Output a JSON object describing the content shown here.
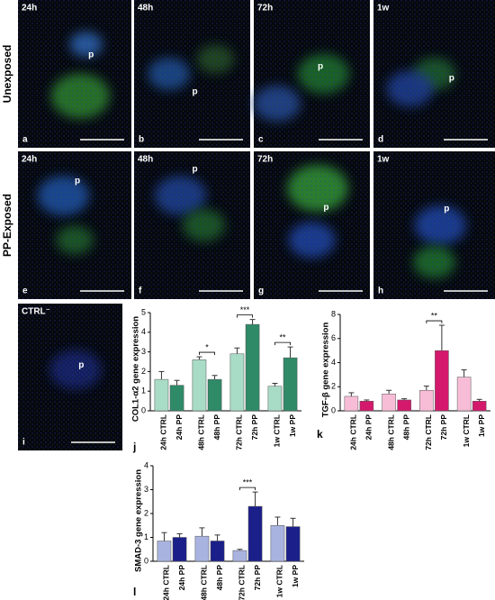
{
  "figure": {
    "rows": [
      "Unexposed",
      "PP-Exposed"
    ],
    "panels": [
      {
        "time": "24h",
        "marker": "p",
        "letter": "a"
      },
      {
        "time": "48h",
        "marker": "p",
        "letter": "b"
      },
      {
        "time": "72h",
        "marker": "p",
        "letter": "c"
      },
      {
        "time": "1w",
        "marker": "p",
        "letter": "d"
      },
      {
        "time": "24h",
        "marker": "p",
        "letter": "e"
      },
      {
        "time": "48h",
        "marker": "p",
        "letter": "f"
      },
      {
        "time": "72h",
        "marker": "p",
        "letter": "g"
      },
      {
        "time": "1w",
        "marker": "p",
        "letter": "h"
      },
      {
        "time": "CTRL⁻",
        "marker": "p",
        "letter": "i"
      }
    ]
  },
  "chart_data": [
    {
      "type": "bar",
      "letter": "j",
      "ylabel": "COL1-α2 gene expression",
      "categories": [
        "24h CTRL",
        "24h PP",
        "48h CTRL",
        "48h PP",
        "72h CTRL",
        "72h PP",
        "1w CTRL",
        "1w PP"
      ],
      "values": [
        1.6,
        1.3,
        2.6,
        1.6,
        2.9,
        4.4,
        1.25,
        2.7
      ],
      "errors": [
        0.4,
        0.25,
        0.15,
        0.2,
        0.3,
        0.25,
        0.15,
        0.55
      ],
      "significance": [
        null,
        null,
        null,
        "*",
        null,
        "***",
        null,
        "**"
      ],
      "colors": [
        "#a9dcc6",
        "#2f8a68"
      ],
      "ylim": [
        0,
        5
      ],
      "yticks": [
        0,
        1,
        2,
        3,
        4,
        5
      ]
    },
    {
      "type": "bar",
      "letter": "k",
      "ylabel": "TGF-β gene expression",
      "categories": [
        "24h CTRL",
        "24h PP",
        "48h CTRL",
        "48h PP",
        "72h CTRL",
        "72h PP",
        "1w CTRL",
        "1w PP"
      ],
      "values": [
        1.2,
        0.8,
        1.4,
        0.9,
        1.7,
        5.0,
        2.8,
        0.8
      ],
      "errors": [
        0.3,
        0.1,
        0.3,
        0.1,
        0.35,
        2.1,
        0.6,
        0.15
      ],
      "significance": [
        null,
        null,
        null,
        null,
        null,
        "**",
        null,
        null
      ],
      "colors": [
        "#f7bdd7",
        "#d4196c"
      ],
      "ylim": [
        0,
        8
      ],
      "yticks": [
        0,
        2,
        4,
        6,
        8
      ]
    },
    {
      "type": "bar",
      "letter": "l",
      "ylabel": "SMAD-3 gene expression",
      "categories": [
        "24h CTRL",
        "24h PP",
        "48h CTRL",
        "48h PP",
        "72h CTRL",
        "72h PP",
        "1w CTRL",
        "1w PP"
      ],
      "values": [
        0.85,
        1.0,
        1.05,
        0.85,
        0.45,
        2.3,
        1.5,
        1.45
      ],
      "errors": [
        0.35,
        0.15,
        0.35,
        0.25,
        0.05,
        0.6,
        0.35,
        0.35
      ],
      "significance": [
        null,
        null,
        null,
        null,
        null,
        "***",
        null,
        null
      ],
      "colors": [
        "#a9b3e0",
        "#1b1f8a"
      ],
      "ylim": [
        0,
        4
      ],
      "yticks": [
        0,
        1,
        2,
        3,
        4
      ]
    }
  ]
}
